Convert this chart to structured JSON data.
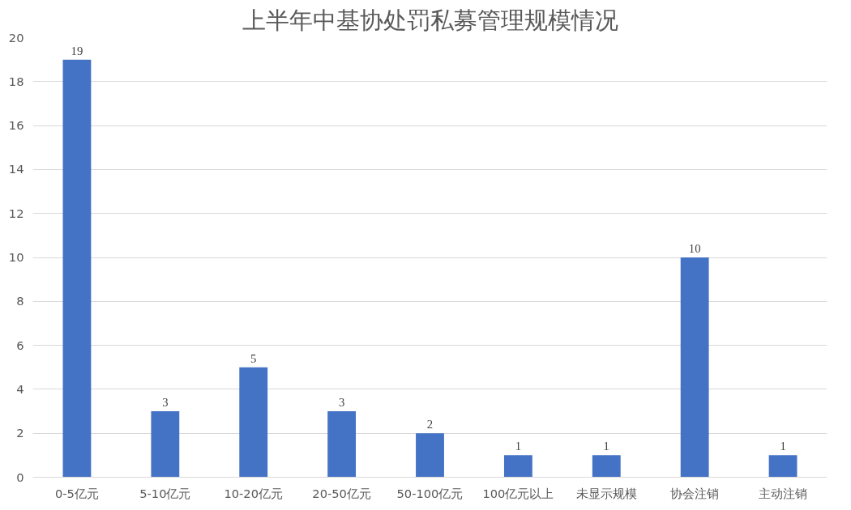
{
  "chart_data": {
    "type": "bar",
    "title": "上半年中基协处罚私募管理规模情况",
    "categories": [
      "0-5亿元",
      "5-10亿元",
      "10-20亿元",
      "20-50亿元",
      "50-100亿元",
      "100亿元以上",
      "未显示规模",
      "协会注销",
      "主动注销"
    ],
    "values": [
      19,
      3,
      5,
      3,
      2,
      1,
      1,
      10,
      1
    ],
    "color": "#4472c4",
    "ylim": [
      0,
      20
    ],
    "yticks": [
      0,
      2,
      4,
      6,
      8,
      10,
      12,
      14,
      16,
      18,
      20
    ],
    "grid": "y",
    "data_labels": true
  }
}
